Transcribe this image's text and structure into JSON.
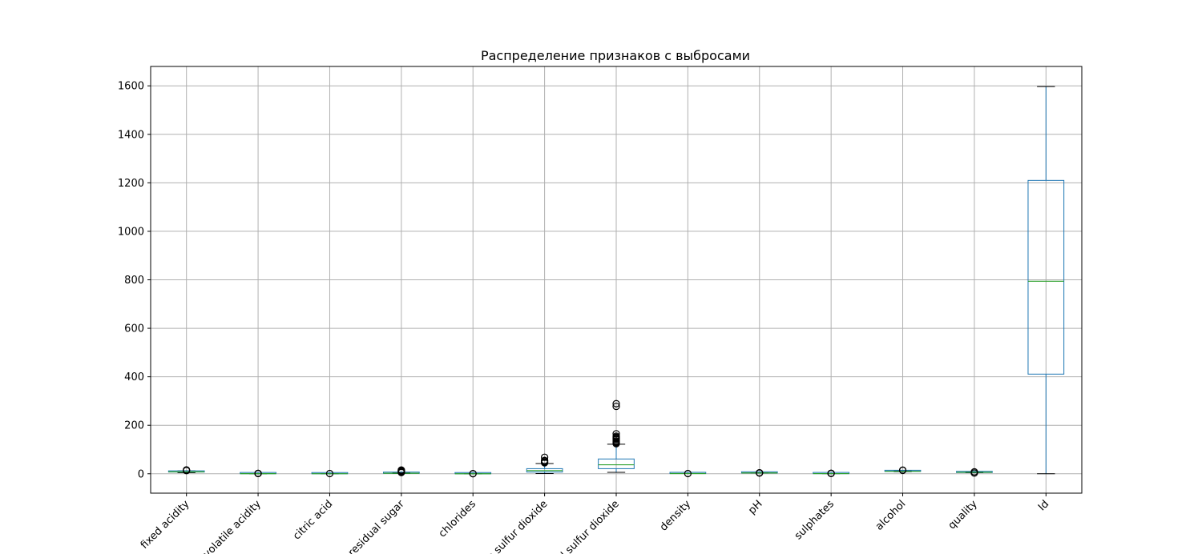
{
  "chart_data": {
    "type": "box",
    "title": "Распределение признаков с выбросами",
    "xlabel": "",
    "ylabel": "",
    "ylim": [
      -80,
      1680
    ],
    "yticks": [
      0,
      200,
      400,
      600,
      800,
      1000,
      1200,
      1400,
      1600
    ],
    "xtick_rotation_deg": 45,
    "grid": true,
    "colors": {
      "box": "#1f77b4",
      "median": "#2ca02c",
      "whisker_cap": "#000000",
      "grid": "#b0b0b0"
    },
    "categories": [
      "fixed acidity",
      "volatile acidity",
      "citric acid",
      "residual sugar",
      "chlorides",
      "free sulfur dioxide",
      "total sulfur dioxide",
      "density",
      "pH",
      "sulphates",
      "alcohol",
      "quality",
      "Id"
    ],
    "boxes": [
      {
        "name": "fixed acidity",
        "whislo": 4.6,
        "q1": 7.1,
        "median": 7.9,
        "q3": 9.2,
        "whishi": 12.3,
        "fliers": [
          13,
          14,
          15,
          15.9
        ]
      },
      {
        "name": "volatile acidity",
        "whislo": 0.12,
        "q1": 0.39,
        "median": 0.52,
        "q3": 0.64,
        "whishi": 1.02,
        "fliers": [
          1.1,
          1.3,
          1.58
        ]
      },
      {
        "name": "citric acid",
        "whislo": 0,
        "q1": 0.09,
        "median": 0.26,
        "q3": 0.42,
        "whishi": 0.79,
        "fliers": [
          1.0
        ]
      },
      {
        "name": "residual sugar",
        "whislo": 0.9,
        "q1": 1.9,
        "median": 2.2,
        "q3": 2.6,
        "whishi": 3.6,
        "fliers": [
          5,
          8,
          10,
          13,
          15.5
        ]
      },
      {
        "name": "chlorides",
        "whislo": 0.04,
        "q1": 0.07,
        "median": 0.079,
        "q3": 0.09,
        "whishi": 0.12,
        "fliers": [
          0.3,
          0.6
        ]
      },
      {
        "name": "free sulfur dioxide",
        "whislo": 1,
        "q1": 7,
        "median": 13,
        "q3": 21,
        "whishi": 42,
        "fliers": [
          45,
          48,
          52,
          55,
          68
        ]
      },
      {
        "name": "total sulfur dioxide",
        "whislo": 6,
        "q1": 21,
        "median": 37,
        "q3": 61,
        "whishi": 122,
        "fliers": [
          124,
          128,
          131,
          135,
          141,
          145,
          148,
          151,
          155,
          165,
          278,
          289
        ]
      },
      {
        "name": "density",
        "whislo": 0.992,
        "q1": 0.9956,
        "median": 0.9967,
        "q3": 0.9978,
        "whishi": 1.001,
        "fliers": [
          1.003
        ]
      },
      {
        "name": "pH",
        "whislo": 2.92,
        "q1": 3.21,
        "median": 3.31,
        "q3": 3.4,
        "whishi": 3.68,
        "fliers": [
          2.8,
          3.8,
          4.01
        ]
      },
      {
        "name": "sulphates",
        "whislo": 0.33,
        "q1": 0.55,
        "median": 0.62,
        "q3": 0.73,
        "whishi": 0.98,
        "fliers": [
          1.2,
          1.5,
          2.0
        ]
      },
      {
        "name": "alcohol",
        "whislo": 8.4,
        "q1": 9.5,
        "median": 10.2,
        "q3": 11.1,
        "whishi": 13.6,
        "fliers": [
          14,
          14.9
        ]
      },
      {
        "name": "quality",
        "whislo": 4,
        "q1": 5,
        "median": 6,
        "q3": 6,
        "whishi": 7,
        "fliers": [
          3,
          8
        ]
      },
      {
        "name": "Id",
        "whislo": 0,
        "q1": 411,
        "median": 794,
        "q3": 1210,
        "whishi": 1597,
        "fliers": []
      }
    ]
  }
}
